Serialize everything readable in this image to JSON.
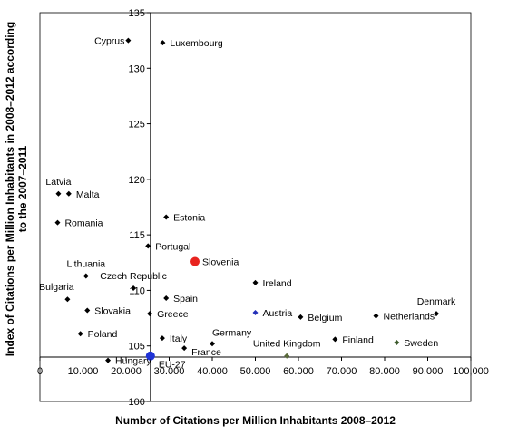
{
  "chart_data": {
    "type": "scatter",
    "xlabel": "Number of Citations per Million Inhabitants 2008–2012",
    "ylabel_lines": [
      "Index of Citations per Million Inhabitants in 2008–2012 according",
      "to the 2007–2011"
    ],
    "xlim": [
      0,
      100000
    ],
    "ylim": [
      100,
      135
    ],
    "x_axis_crosses_y": 104,
    "y_axis_crosses_x": 25650,
    "grid": false,
    "legend": "none",
    "x_ticks": [
      {
        "value": 0,
        "label": "0"
      },
      {
        "value": 10000,
        "label": "10.000"
      },
      {
        "value": 20000,
        "label": "20.000"
      },
      {
        "value": 30000,
        "label": "30.000"
      },
      {
        "value": 40000,
        "label": "40.000"
      },
      {
        "value": 50000,
        "label": "50.000"
      },
      {
        "value": 60000,
        "label": "60.000"
      },
      {
        "value": 70000,
        "label": "70.000"
      },
      {
        "value": 80000,
        "label": "80.000"
      },
      {
        "value": 90000,
        "label": "90.000"
      },
      {
        "value": 100000,
        "label": "100,000"
      }
    ],
    "y_ticks": [
      {
        "value": 100,
        "label": "100"
      },
      {
        "value": 105,
        "label": "105"
      },
      {
        "value": 110,
        "label": "110"
      },
      {
        "value": 115,
        "label": "115"
      },
      {
        "value": 120,
        "label": "120"
      },
      {
        "value": 125,
        "label": "125"
      },
      {
        "value": 130,
        "label": "130"
      },
      {
        "value": 135,
        "label": "135"
      }
    ],
    "colors": {
      "default": "#000000",
      "slovenia": "#e8231f",
      "eu27": "#1f33d6",
      "austria": "#2430b8",
      "uk": "#5a6b3a",
      "sweden": "#3c5a2c"
    },
    "points": [
      {
        "name": "Cyprus",
        "x": 20500,
        "y": 132.5,
        "color": "default",
        "size": "small",
        "label_pos": "left"
      },
      {
        "name": "Luxembourg",
        "x": 28500,
        "y": 132.3,
        "color": "default",
        "size": "small",
        "label_pos": "right"
      },
      {
        "name": "Latvia",
        "x": 4300,
        "y": 118.7,
        "color": "default",
        "size": "small",
        "label_pos": "above"
      },
      {
        "name": "Malta",
        "x": 6700,
        "y": 118.7,
        "color": "default",
        "size": "small",
        "label_pos": "right"
      },
      {
        "name": "Romania",
        "x": 4100,
        "y": 116.1,
        "color": "default",
        "size": "small",
        "label_pos": "right"
      },
      {
        "name": "Estonia",
        "x": 29300,
        "y": 116.6,
        "color": "default",
        "size": "small",
        "label_pos": "right"
      },
      {
        "name": "Portugal",
        "x": 25100,
        "y": 114.0,
        "color": "default",
        "size": "small",
        "label_pos": "right"
      },
      {
        "name": "Slovenia",
        "x": 36000,
        "y": 112.6,
        "color": "slovenia",
        "size": "large",
        "label_pos": "right"
      },
      {
        "name": "Lithuania",
        "x": 10700,
        "y": 111.3,
        "color": "default",
        "size": "small",
        "label_pos": "above"
      },
      {
        "name": "Czech Republic",
        "x": 21700,
        "y": 110.2,
        "color": "default",
        "size": "small",
        "label_pos": "above"
      },
      {
        "name": "Ireland",
        "x": 50000,
        "y": 110.7,
        "color": "default",
        "size": "small",
        "label_pos": "right"
      },
      {
        "name": "Bulgaria",
        "x": 6400,
        "y": 109.2,
        "color": "default",
        "size": "small",
        "label_pos": "above-left"
      },
      {
        "name": "Spain",
        "x": 29300,
        "y": 109.3,
        "color": "default",
        "size": "small",
        "label_pos": "right"
      },
      {
        "name": "Slovakia",
        "x": 11000,
        "y": 108.2,
        "color": "default",
        "size": "small",
        "label_pos": "right"
      },
      {
        "name": "Austria",
        "x": 50000,
        "y": 108.0,
        "color": "austria",
        "size": "small",
        "label_pos": "right"
      },
      {
        "name": "Greece",
        "x": 25500,
        "y": 107.9,
        "color": "default",
        "size": "small",
        "label_pos": "right"
      },
      {
        "name": "Belgium",
        "x": 60500,
        "y": 107.6,
        "color": "default",
        "size": "small",
        "label_pos": "right"
      },
      {
        "name": "Netherlands",
        "x": 78000,
        "y": 107.7,
        "color": "default",
        "size": "small",
        "label_pos": "right"
      },
      {
        "name": "Denmark",
        "x": 92000,
        "y": 107.9,
        "color": "default",
        "size": "small",
        "label_pos": "above"
      },
      {
        "name": "Poland",
        "x": 9400,
        "y": 106.1,
        "color": "default",
        "size": "small",
        "label_pos": "right"
      },
      {
        "name": "Italy",
        "x": 28400,
        "y": 105.7,
        "color": "default",
        "size": "small",
        "label_pos": "right"
      },
      {
        "name": "Germany",
        "x": 40000,
        "y": 105.2,
        "color": "default",
        "size": "small",
        "label_pos": "above-right"
      },
      {
        "name": "France",
        "x": 33500,
        "y": 104.8,
        "color": "default",
        "size": "small",
        "label_pos": "right-below"
      },
      {
        "name": "Finland",
        "x": 68500,
        "y": 105.6,
        "color": "default",
        "size": "small",
        "label_pos": "right"
      },
      {
        "name": "United Kingdom",
        "x": 57300,
        "y": 104.1,
        "color": "uk",
        "size": "small",
        "label_pos": "above"
      },
      {
        "name": "Sweden",
        "x": 82800,
        "y": 105.3,
        "color": "sweden",
        "size": "small",
        "label_pos": "right"
      },
      {
        "name": "Hungary",
        "x": 15800,
        "y": 103.7,
        "color": "default",
        "size": "small",
        "label_pos": "right"
      },
      {
        "name": "EU-27",
        "x": 25650,
        "y": 104.1,
        "color": "eu27",
        "size": "large",
        "label_pos": "below-right"
      }
    ]
  }
}
